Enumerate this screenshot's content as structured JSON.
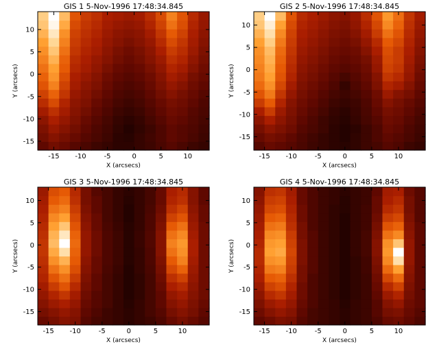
{
  "chart_data": [
    {
      "type": "heatmap",
      "title": "GIS 1  5-Nov-1996 17:48:34.845",
      "xlabel": "X (arcsecs)",
      "ylabel": "Y (arcsecs)",
      "xlim": [
        -18,
        14
      ],
      "ylim": [
        -17,
        14
      ],
      "xticks": [
        -15,
        -10,
        -5,
        0,
        5,
        10
      ],
      "yticks": [
        -15,
        -10,
        -5,
        0,
        5,
        10
      ],
      "nx": 16,
      "ny": 16,
      "values": [
        [
          0.2,
          0.25,
          0.22,
          0.18,
          0.15,
          0.12,
          0.1,
          0.08,
          0.08,
          0.1,
          0.12,
          0.15,
          0.18,
          0.15,
          0.12,
          0.1
        ],
        [
          0.25,
          0.3,
          0.26,
          0.22,
          0.18,
          0.15,
          0.12,
          0.08,
          0.07,
          0.1,
          0.13,
          0.16,
          0.2,
          0.18,
          0.15,
          0.12
        ],
        [
          0.28,
          0.35,
          0.3,
          0.25,
          0.2,
          0.16,
          0.13,
          0.09,
          0.06,
          0.09,
          0.12,
          0.16,
          0.2,
          0.18,
          0.16,
          0.13
        ],
        [
          0.32,
          0.4,
          0.34,
          0.28,
          0.22,
          0.18,
          0.14,
          0.1,
          0.08,
          0.1,
          0.14,
          0.18,
          0.22,
          0.2,
          0.17,
          0.14
        ],
        [
          0.38,
          0.46,
          0.38,
          0.3,
          0.25,
          0.2,
          0.16,
          0.12,
          0.1,
          0.12,
          0.16,
          0.2,
          0.24,
          0.22,
          0.18,
          0.15
        ],
        [
          0.45,
          0.55,
          0.42,
          0.32,
          0.28,
          0.22,
          0.18,
          0.14,
          0.12,
          0.14,
          0.18,
          0.22,
          0.26,
          0.24,
          0.2,
          0.16
        ],
        [
          0.52,
          0.62,
          0.48,
          0.35,
          0.3,
          0.25,
          0.2,
          0.16,
          0.14,
          0.16,
          0.2,
          0.25,
          0.3,
          0.26,
          0.22,
          0.18
        ],
        [
          0.58,
          0.7,
          0.52,
          0.38,
          0.32,
          0.28,
          0.22,
          0.18,
          0.16,
          0.18,
          0.22,
          0.28,
          0.34,
          0.3,
          0.24,
          0.2
        ],
        [
          0.62,
          0.75,
          0.56,
          0.4,
          0.35,
          0.3,
          0.24,
          0.2,
          0.18,
          0.2,
          0.24,
          0.3,
          0.38,
          0.34,
          0.26,
          0.22
        ],
        [
          0.66,
          0.78,
          0.6,
          0.43,
          0.38,
          0.33,
          0.27,
          0.22,
          0.2,
          0.22,
          0.27,
          0.33,
          0.42,
          0.38,
          0.3,
          0.24
        ],
        [
          0.7,
          0.82,
          0.62,
          0.45,
          0.4,
          0.35,
          0.3,
          0.25,
          0.22,
          0.25,
          0.3,
          0.36,
          0.46,
          0.42,
          0.33,
          0.26
        ],
        [
          0.74,
          0.86,
          0.66,
          0.48,
          0.42,
          0.38,
          0.32,
          0.27,
          0.24,
          0.27,
          0.32,
          0.4,
          0.5,
          0.45,
          0.36,
          0.28
        ],
        [
          0.78,
          0.9,
          0.7,
          0.5,
          0.44,
          0.4,
          0.34,
          0.3,
          0.27,
          0.3,
          0.35,
          0.44,
          0.55,
          0.48,
          0.38,
          0.3
        ],
        [
          0.82,
          0.94,
          0.74,
          0.52,
          0.46,
          0.42,
          0.36,
          0.32,
          0.3,
          0.32,
          0.38,
          0.48,
          0.6,
          0.52,
          0.4,
          0.32
        ],
        [
          0.86,
          0.98,
          0.8,
          0.55,
          0.48,
          0.44,
          0.38,
          0.35,
          0.33,
          0.35,
          0.42,
          0.52,
          0.66,
          0.56,
          0.42,
          0.34
        ],
        [
          0.88,
          1.0,
          0.84,
          0.58,
          0.5,
          0.46,
          0.4,
          0.38,
          0.36,
          0.38,
          0.45,
          0.55,
          0.7,
          0.58,
          0.44,
          0.35
        ]
      ]
    },
    {
      "type": "heatmap",
      "title": "GIS 2  5-Nov-1996 17:48:34.845",
      "xlabel": "X (arcsecs)",
      "ylabel": "Y (arcsecs)",
      "xlim": [
        -17,
        15
      ],
      "ylim": [
        -18,
        13
      ],
      "xticks": [
        -15,
        -10,
        -5,
        0,
        5,
        10
      ],
      "yticks": [
        -15,
        -10,
        -5,
        0,
        5,
        10
      ],
      "nx": 16,
      "ny": 16,
      "values": [
        [
          0.18,
          0.22,
          0.2,
          0.18,
          0.15,
          0.12,
          0.1,
          0.08,
          0.07,
          0.09,
          0.12,
          0.14,
          0.18,
          0.16,
          0.12,
          0.1
        ],
        [
          0.22,
          0.26,
          0.24,
          0.2,
          0.16,
          0.13,
          0.1,
          0.08,
          0.06,
          0.09,
          0.12,
          0.16,
          0.2,
          0.18,
          0.15,
          0.12
        ],
        [
          0.26,
          0.32,
          0.28,
          0.24,
          0.18,
          0.15,
          0.12,
          0.08,
          0.06,
          0.08,
          0.12,
          0.16,
          0.22,
          0.2,
          0.16,
          0.13
        ],
        [
          0.32,
          0.4,
          0.32,
          0.26,
          0.2,
          0.16,
          0.12,
          0.09,
          0.07,
          0.1,
          0.14,
          0.18,
          0.24,
          0.22,
          0.18,
          0.14
        ],
        [
          0.4,
          0.5,
          0.36,
          0.28,
          0.22,
          0.18,
          0.14,
          0.1,
          0.08,
          0.11,
          0.15,
          0.2,
          0.26,
          0.24,
          0.2,
          0.16
        ],
        [
          0.5,
          0.6,
          0.42,
          0.3,
          0.24,
          0.2,
          0.16,
          0.12,
          0.1,
          0.12,
          0.16,
          0.22,
          0.3,
          0.26,
          0.22,
          0.18
        ],
        [
          0.58,
          0.68,
          0.48,
          0.34,
          0.26,
          0.22,
          0.18,
          0.14,
          0.12,
          0.14,
          0.18,
          0.24,
          0.36,
          0.3,
          0.26,
          0.2
        ],
        [
          0.64,
          0.74,
          0.54,
          0.38,
          0.28,
          0.24,
          0.2,
          0.16,
          0.1,
          0.16,
          0.2,
          0.28,
          0.42,
          0.38,
          0.3,
          0.22
        ],
        [
          0.68,
          0.78,
          0.58,
          0.42,
          0.3,
          0.26,
          0.22,
          0.18,
          0.14,
          0.18,
          0.22,
          0.3,
          0.48,
          0.44,
          0.34,
          0.24
        ],
        [
          0.7,
          0.8,
          0.6,
          0.44,
          0.32,
          0.28,
          0.24,
          0.2,
          0.18,
          0.2,
          0.24,
          0.34,
          0.52,
          0.48,
          0.36,
          0.26
        ],
        [
          0.72,
          0.82,
          0.62,
          0.46,
          0.34,
          0.3,
          0.26,
          0.22,
          0.2,
          0.22,
          0.26,
          0.36,
          0.54,
          0.5,
          0.38,
          0.28
        ],
        [
          0.74,
          0.84,
          0.64,
          0.48,
          0.36,
          0.32,
          0.28,
          0.24,
          0.22,
          0.24,
          0.3,
          0.4,
          0.56,
          0.5,
          0.4,
          0.3
        ],
        [
          0.78,
          0.88,
          0.68,
          0.5,
          0.38,
          0.34,
          0.3,
          0.26,
          0.24,
          0.27,
          0.34,
          0.44,
          0.6,
          0.54,
          0.42,
          0.32
        ],
        [
          0.82,
          0.92,
          0.72,
          0.52,
          0.4,
          0.36,
          0.32,
          0.28,
          0.26,
          0.3,
          0.38,
          0.5,
          0.66,
          0.58,
          0.44,
          0.34
        ],
        [
          0.86,
          0.96,
          0.78,
          0.55,
          0.42,
          0.38,
          0.34,
          0.3,
          0.28,
          0.33,
          0.42,
          0.54,
          0.72,
          0.62,
          0.46,
          0.36
        ],
        [
          0.88,
          1.0,
          0.84,
          0.58,
          0.44,
          0.4,
          0.36,
          0.32,
          0.3,
          0.35,
          0.45,
          0.58,
          0.76,
          0.65,
          0.48,
          0.38
        ]
      ]
    },
    {
      "type": "heatmap",
      "title": "GIS 3  5-Nov-1996 17:48:34.845",
      "xlabel": "X (arcsecs)",
      "ylabel": "Y (arcsecs)",
      "xlim": [
        -17,
        15
      ],
      "ylim": [
        -18,
        13
      ],
      "xticks": [
        -15,
        -10,
        -5,
        0,
        5,
        10
      ],
      "yticks": [
        -15,
        -10,
        -5,
        0,
        5,
        10
      ],
      "nx": 16,
      "ny": 16,
      "values": [
        [
          0.22,
          0.26,
          0.3,
          0.28,
          0.18,
          0.14,
          0.12,
          0.1,
          0.08,
          0.1,
          0.12,
          0.16,
          0.22,
          0.26,
          0.22,
          0.18
        ],
        [
          0.26,
          0.3,
          0.34,
          0.3,
          0.2,
          0.16,
          0.12,
          0.1,
          0.08,
          0.1,
          0.14,
          0.18,
          0.26,
          0.3,
          0.26,
          0.2
        ],
        [
          0.3,
          0.36,
          0.4,
          0.34,
          0.22,
          0.18,
          0.14,
          0.1,
          0.07,
          0.1,
          0.14,
          0.2,
          0.3,
          0.34,
          0.28,
          0.22
        ],
        [
          0.34,
          0.42,
          0.48,
          0.38,
          0.24,
          0.18,
          0.14,
          0.1,
          0.06,
          0.09,
          0.14,
          0.2,
          0.34,
          0.38,
          0.3,
          0.24
        ],
        [
          0.38,
          0.5,
          0.58,
          0.44,
          0.26,
          0.2,
          0.14,
          0.1,
          0.06,
          0.09,
          0.14,
          0.22,
          0.4,
          0.44,
          0.32,
          0.24
        ],
        [
          0.42,
          0.58,
          0.66,
          0.5,
          0.28,
          0.2,
          0.14,
          0.1,
          0.06,
          0.09,
          0.14,
          0.24,
          0.46,
          0.52,
          0.34,
          0.24
        ],
        [
          0.44,
          0.66,
          0.74,
          0.56,
          0.3,
          0.22,
          0.15,
          0.11,
          0.06,
          0.1,
          0.15,
          0.26,
          0.54,
          0.62,
          0.36,
          0.24
        ],
        [
          0.46,
          0.74,
          0.82,
          0.6,
          0.32,
          0.22,
          0.16,
          0.12,
          0.07,
          0.1,
          0.16,
          0.28,
          0.6,
          0.7,
          0.38,
          0.24
        ],
        [
          0.48,
          0.8,
          0.92,
          0.62,
          0.34,
          0.24,
          0.16,
          0.12,
          0.07,
          0.1,
          0.16,
          0.3,
          0.66,
          0.74,
          0.4,
          0.24
        ],
        [
          0.48,
          0.84,
          1.0,
          0.64,
          0.34,
          0.24,
          0.16,
          0.12,
          0.07,
          0.11,
          0.17,
          0.3,
          0.7,
          0.76,
          0.4,
          0.24
        ],
        [
          0.46,
          0.82,
          0.94,
          0.62,
          0.34,
          0.24,
          0.16,
          0.12,
          0.07,
          0.11,
          0.17,
          0.3,
          0.66,
          0.72,
          0.38,
          0.24
        ],
        [
          0.44,
          0.78,
          0.86,
          0.58,
          0.32,
          0.22,
          0.15,
          0.11,
          0.07,
          0.1,
          0.16,
          0.28,
          0.6,
          0.66,
          0.36,
          0.24
        ],
        [
          0.42,
          0.72,
          0.78,
          0.54,
          0.3,
          0.22,
          0.14,
          0.1,
          0.06,
          0.1,
          0.16,
          0.26,
          0.52,
          0.58,
          0.34,
          0.22
        ],
        [
          0.4,
          0.66,
          0.7,
          0.5,
          0.28,
          0.2,
          0.14,
          0.1,
          0.06,
          0.1,
          0.15,
          0.24,
          0.46,
          0.52,
          0.32,
          0.22
        ],
        [
          0.38,
          0.6,
          0.64,
          0.46,
          0.26,
          0.2,
          0.14,
          0.1,
          0.07,
          0.1,
          0.14,
          0.22,
          0.42,
          0.46,
          0.3,
          0.2
        ],
        [
          0.36,
          0.56,
          0.6,
          0.44,
          0.26,
          0.18,
          0.14,
          0.1,
          0.08,
          0.1,
          0.14,
          0.22,
          0.4,
          0.44,
          0.3,
          0.2
        ]
      ]
    },
    {
      "type": "heatmap",
      "title": "GIS 4  5-Nov-1996 17:48:34.845",
      "xlabel": "X (arcsecs)",
      "ylabel": "Y (arcsecs)",
      "xlim": [
        -17,
        15
      ],
      "ylim": [
        -18,
        13
      ],
      "xticks": [
        -15,
        -10,
        -5,
        0,
        5,
        10
      ],
      "yticks": [
        -15,
        -10,
        -5,
        0,
        5,
        10
      ],
      "nx": 16,
      "ny": 16,
      "values": [
        [
          0.2,
          0.24,
          0.28,
          0.26,
          0.18,
          0.14,
          0.12,
          0.1,
          0.08,
          0.1,
          0.12,
          0.16,
          0.22,
          0.24,
          0.2,
          0.16
        ],
        [
          0.24,
          0.3,
          0.34,
          0.3,
          0.2,
          0.14,
          0.12,
          0.1,
          0.08,
          0.1,
          0.12,
          0.18,
          0.26,
          0.28,
          0.22,
          0.18
        ],
        [
          0.28,
          0.36,
          0.4,
          0.34,
          0.22,
          0.16,
          0.12,
          0.1,
          0.07,
          0.1,
          0.12,
          0.18,
          0.3,
          0.34,
          0.24,
          0.2
        ],
        [
          0.32,
          0.44,
          0.48,
          0.38,
          0.24,
          0.16,
          0.12,
          0.09,
          0.06,
          0.09,
          0.12,
          0.2,
          0.36,
          0.42,
          0.26,
          0.2
        ],
        [
          0.36,
          0.52,
          0.56,
          0.42,
          0.24,
          0.16,
          0.12,
          0.09,
          0.06,
          0.09,
          0.12,
          0.22,
          0.44,
          0.52,
          0.28,
          0.2
        ],
        [
          0.4,
          0.6,
          0.62,
          0.46,
          0.26,
          0.16,
          0.12,
          0.09,
          0.06,
          0.09,
          0.12,
          0.24,
          0.54,
          0.64,
          0.3,
          0.2
        ],
        [
          0.42,
          0.68,
          0.7,
          0.5,
          0.26,
          0.18,
          0.12,
          0.09,
          0.06,
          0.09,
          0.13,
          0.26,
          0.64,
          0.78,
          0.32,
          0.2
        ],
        [
          0.44,
          0.74,
          0.76,
          0.52,
          0.28,
          0.18,
          0.12,
          0.09,
          0.06,
          0.09,
          0.13,
          0.28,
          0.72,
          0.92,
          0.34,
          0.2
        ],
        [
          0.44,
          0.78,
          0.8,
          0.54,
          0.28,
          0.18,
          0.12,
          0.09,
          0.06,
          0.1,
          0.14,
          0.3,
          0.76,
          1.0,
          0.34,
          0.2
        ],
        [
          0.42,
          0.76,
          0.78,
          0.52,
          0.28,
          0.18,
          0.12,
          0.09,
          0.06,
          0.1,
          0.14,
          0.3,
          0.74,
          0.86,
          0.34,
          0.2
        ],
        [
          0.4,
          0.72,
          0.74,
          0.5,
          0.26,
          0.18,
          0.12,
          0.09,
          0.06,
          0.1,
          0.14,
          0.28,
          0.66,
          0.72,
          0.32,
          0.2
        ],
        [
          0.38,
          0.66,
          0.68,
          0.46,
          0.26,
          0.16,
          0.12,
          0.09,
          0.06,
          0.1,
          0.13,
          0.26,
          0.58,
          0.62,
          0.3,
          0.2
        ],
        [
          0.36,
          0.6,
          0.62,
          0.44,
          0.24,
          0.16,
          0.12,
          0.09,
          0.06,
          0.1,
          0.13,
          0.24,
          0.5,
          0.54,
          0.28,
          0.18
        ],
        [
          0.34,
          0.54,
          0.56,
          0.42,
          0.24,
          0.16,
          0.12,
          0.09,
          0.07,
          0.1,
          0.13,
          0.22,
          0.44,
          0.48,
          0.26,
          0.18
        ],
        [
          0.32,
          0.5,
          0.52,
          0.4,
          0.22,
          0.16,
          0.12,
          0.1,
          0.07,
          0.1,
          0.12,
          0.22,
          0.4,
          0.44,
          0.26,
          0.18
        ],
        [
          0.3,
          0.46,
          0.48,
          0.38,
          0.22,
          0.16,
          0.12,
          0.1,
          0.08,
          0.1,
          0.12,
          0.2,
          0.38,
          0.4,
          0.24,
          0.18
        ]
      ]
    }
  ]
}
